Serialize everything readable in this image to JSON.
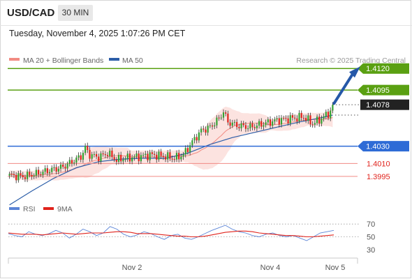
{
  "header": {
    "symbol": "USD/CAD",
    "timeframe": "30 MIN",
    "datetime": "Tuesday, November 4, 2025 1:07:26 PM CET"
  },
  "legend": {
    "items": [
      {
        "label": "MA 20 + Bollinger Bands",
        "color": "#f28b82"
      },
      {
        "label": "MA 50",
        "color": "#2c5ea8"
      }
    ],
    "credit": "Research © 2025 Trading Central"
  },
  "rsi_legend": {
    "items": [
      {
        "label": "RSI",
        "color": "#5b84d6"
      },
      {
        "label": "9MA",
        "color": "#e0231c"
      }
    ]
  },
  "chart_data": [
    {
      "type": "candlestick",
      "title": "USD/CAD",
      "x_ticks": [
        "Nov 2",
        "Nov 4",
        "Nov 5"
      ],
      "ylim": [
        1.3965,
        1.4125
      ],
      "levels": [
        {
          "value": 1.412,
          "label": "1.4120",
          "kind": "target",
          "color": "#5aa012"
        },
        {
          "value": 1.4095,
          "label": "1.4095",
          "kind": "resistance",
          "color": "#5aa012"
        },
        {
          "value": 1.4078,
          "label": "1.4078",
          "kind": "last",
          "color": "#222222"
        },
        {
          "value": 1.403,
          "label": "1.4030",
          "kind": "pivot",
          "color": "#2e6bd6"
        },
        {
          "value": 1.401,
          "label": "1.4010",
          "kind": "support",
          "color": "#e0231c"
        },
        {
          "value": 1.3995,
          "label": "1.3995",
          "kind": "support",
          "color": "#e0231c"
        }
      ],
      "price_path": [
        [
          0,
          1.3996
        ],
        [
          6,
          1.3995
        ],
        [
          12,
          1.3998
        ],
        [
          18,
          1.4002
        ],
        [
          24,
          1.4006
        ],
        [
          28,
          1.4012
        ],
        [
          32,
          1.4018
        ],
        [
          34,
          1.4028
        ],
        [
          36,
          1.402
        ],
        [
          40,
          1.4017
        ],
        [
          44,
          1.4022
        ],
        [
          48,
          1.4014
        ],
        [
          52,
          1.4016
        ],
        [
          58,
          1.4018
        ],
        [
          64,
          1.402
        ],
        [
          70,
          1.4018
        ],
        [
          74,
          1.4016
        ],
        [
          78,
          1.402
        ],
        [
          82,
          1.4035
        ],
        [
          86,
          1.4048
        ],
        [
          90,
          1.4052
        ],
        [
          94,
          1.4062
        ],
        [
          96,
          1.407
        ],
        [
          98,
          1.4058
        ],
        [
          102,
          1.4054
        ],
        [
          108,
          1.4052
        ],
        [
          114,
          1.4056
        ],
        [
          120,
          1.406
        ],
        [
          126,
          1.4062
        ],
        [
          132,
          1.4064
        ],
        [
          136,
          1.4056
        ],
        [
          140,
          1.4062
        ],
        [
          144,
          1.407
        ],
        [
          145,
          1.4078
        ]
      ],
      "ma50_path": [
        [
          0,
          1.3962
        ],
        [
          10,
          1.3978
        ],
        [
          20,
          1.3993
        ],
        [
          30,
          1.4005
        ],
        [
          40,
          1.4012
        ],
        [
          50,
          1.4015
        ],
        [
          60,
          1.4016
        ],
        [
          70,
          1.4016
        ],
        [
          80,
          1.4022
        ],
        [
          90,
          1.4032
        ],
        [
          100,
          1.404
        ],
        [
          110,
          1.4046
        ],
        [
          120,
          1.4052
        ],
        [
          130,
          1.4058
        ],
        [
          140,
          1.4063
        ],
        [
          145,
          1.4066
        ]
      ],
      "projection": {
        "from": 1.4078,
        "to": 1.412
      },
      "series": [
        {
          "name": "MA 20 + Bollinger Bands"
        },
        {
          "name": "MA 50"
        }
      ]
    },
    {
      "type": "line",
      "title": "RSI",
      "ylim": [
        20,
        80
      ],
      "y_ticks": [
        70,
        50,
        30
      ],
      "series": [
        {
          "name": "RSI",
          "values": [
            55,
            52,
            50,
            58,
            54,
            52,
            55,
            60,
            56,
            48,
            54,
            62,
            58,
            52,
            56,
            66,
            62,
            54,
            50,
            53,
            58,
            55,
            50,
            46,
            52,
            54,
            48,
            46,
            50,
            55,
            60,
            64,
            68,
            62,
            58,
            56,
            52,
            50,
            54,
            56,
            52,
            50,
            52,
            48,
            44,
            50,
            56,
            58,
            60
          ]
        },
        {
          "name": "9MA",
          "values": [
            56,
            55,
            54,
            54,
            54,
            53,
            54,
            55,
            56,
            55,
            54,
            55,
            56,
            56,
            56,
            57,
            58,
            58,
            57,
            55,
            55,
            55,
            54,
            53,
            52,
            51,
            51,
            50,
            50,
            51,
            53,
            55,
            57,
            58,
            59,
            59,
            58,
            56,
            55,
            54,
            53,
            52,
            52,
            51,
            50,
            50,
            51,
            52,
            53
          ]
        }
      ]
    }
  ]
}
